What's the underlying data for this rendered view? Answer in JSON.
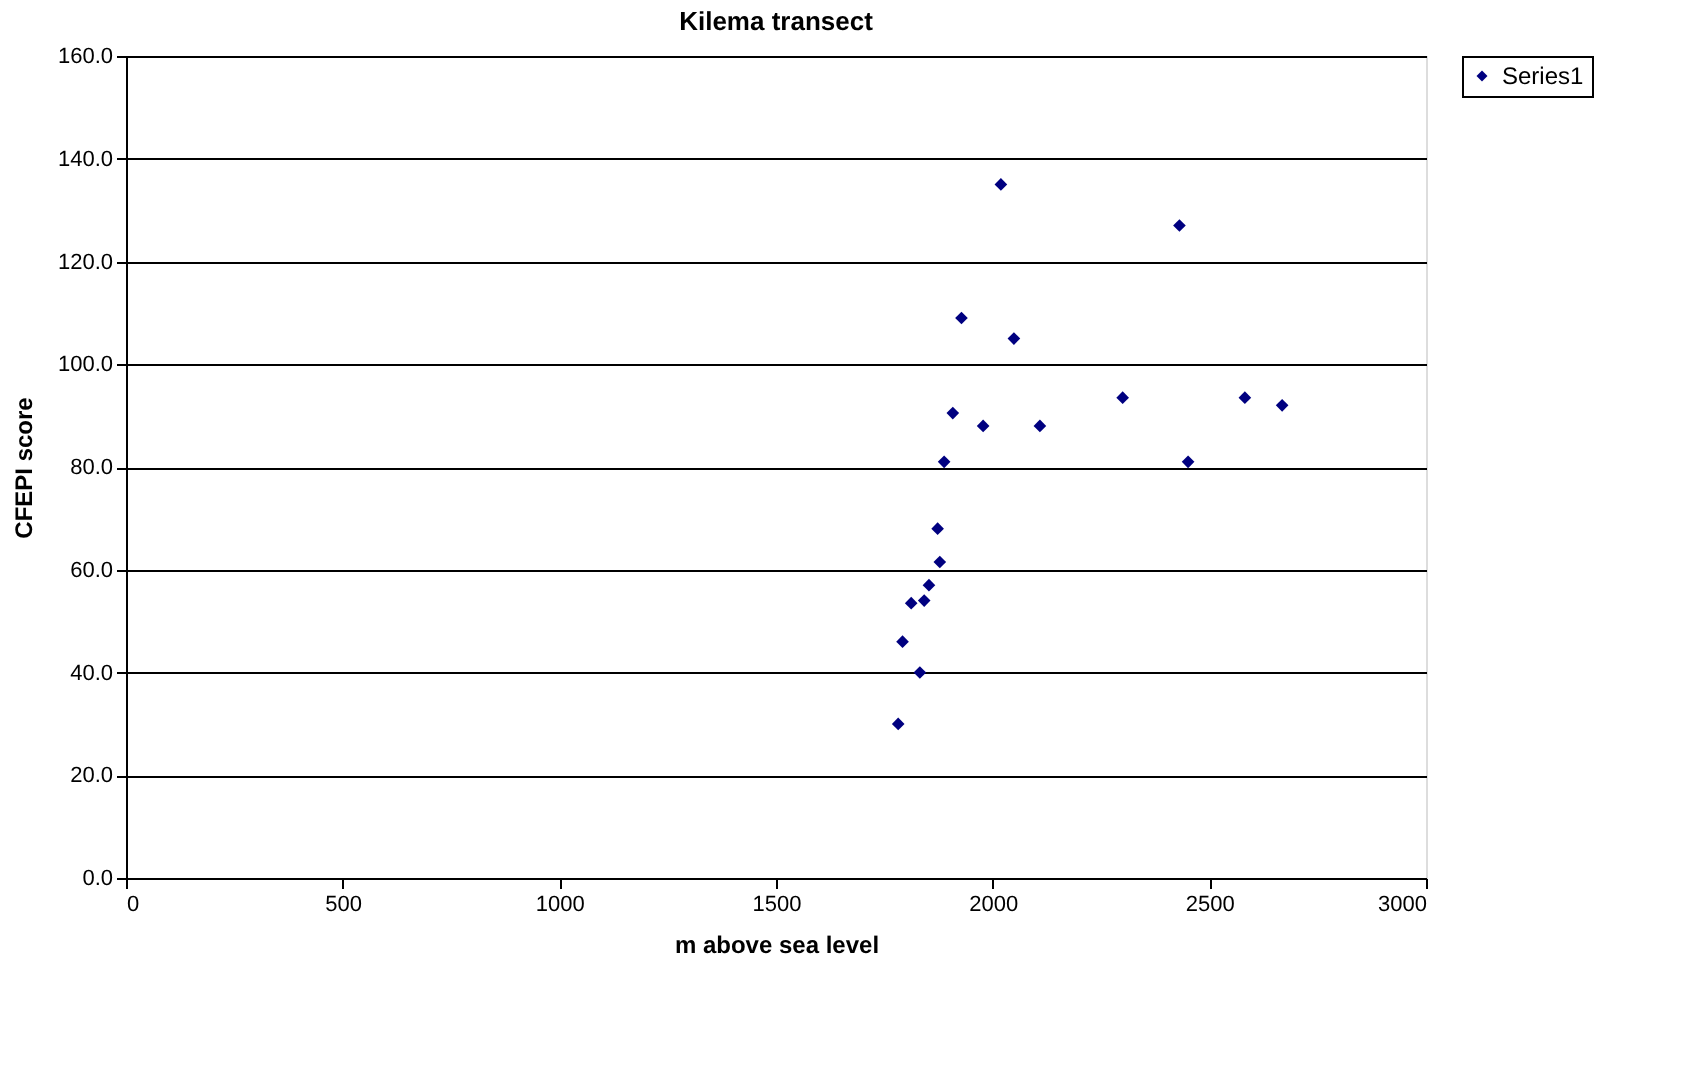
{
  "chart_data": {
    "type": "scatter",
    "title": "Kilema transect",
    "xlabel": "m above sea level",
    "ylabel": "CFEPI score",
    "x": [
      2019,
      2431,
      1928,
      2049,
      1908,
      1978,
      2109,
      2300,
      2582,
      2668,
      1888,
      2451,
      1873,
      1878,
      1853,
      1812,
      1842,
      1792,
      1832,
      1782
    ],
    "series": [
      {
        "name": "Series1",
        "color": "#000080",
        "values": [
          135,
          127,
          109,
          105,
          90.5,
          88,
          88,
          93.5,
          93.5,
          92,
          81,
          81,
          68,
          61.5,
          57,
          53.5,
          54,
          46,
          40,
          30
        ]
      }
    ],
    "xlim": [
      0,
      3000
    ],
    "xticks": [
      0,
      500,
      1000,
      1500,
      2000,
      2500,
      3000
    ],
    "ylim": [
      0,
      160
    ],
    "yticks": [
      {
        "value": 0,
        "label": "0.0"
      },
      {
        "value": 20,
        "label": "20.0"
      },
      {
        "value": 40,
        "label": "40.0"
      },
      {
        "value": 60,
        "label": "60.0"
      },
      {
        "value": 80,
        "label": "80.0"
      },
      {
        "value": 100,
        "label": "100.0"
      },
      {
        "value": 120,
        "label": "120.0"
      },
      {
        "value": 140,
        "label": "140.0"
      },
      {
        "value": 160,
        "label": "160.0"
      }
    ],
    "grid": "y",
    "legend": "right",
    "marker": "diamond"
  }
}
